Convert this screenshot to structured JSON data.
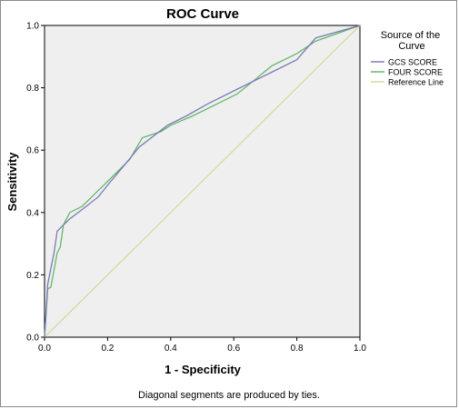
{
  "chart_data": {
    "type": "line",
    "title": "ROC Curve",
    "xlabel": "1 - Specificity",
    "ylabel": "Sensitivity",
    "xlim": [
      0,
      1
    ],
    "ylim": [
      0,
      1
    ],
    "xticks": [
      "0.0",
      "0.2",
      "0.4",
      "0.6",
      "0.8",
      "1.0"
    ],
    "yticks": [
      "0.0",
      "0.2",
      "0.4",
      "0.6",
      "0.8",
      "1.0"
    ],
    "grid": false,
    "legend": {
      "title": "Source of the Curve",
      "title_lines": [
        "Source of the",
        "Curve"
      ],
      "placement": "right"
    },
    "footnote": "Diagonal segments are produced by ties.",
    "series": [
      {
        "name": "GCS SCORE",
        "color": "#7b7bb8",
        "x": [
          0,
          0.01,
          0.03,
          0.04,
          0.06,
          0.08,
          0.12,
          0.17,
          0.21,
          0.26,
          0.3,
          0.39,
          0.45,
          0.52,
          0.6,
          0.68,
          0.74,
          0.8,
          0.86,
          0.93,
          1.0
        ],
        "y": [
          0,
          0.17,
          0.27,
          0.34,
          0.36,
          0.38,
          0.41,
          0.45,
          0.5,
          0.56,
          0.61,
          0.68,
          0.71,
          0.75,
          0.79,
          0.83,
          0.86,
          0.89,
          0.96,
          0.98,
          1.0
        ]
      },
      {
        "name": "FOUR SCORE",
        "color": "#62b86a",
        "x": [
          0,
          0.01,
          0.02,
          0.04,
          0.05,
          0.06,
          0.08,
          0.12,
          0.16,
          0.21,
          0.27,
          0.31,
          0.37,
          0.4,
          0.47,
          0.55,
          0.61,
          0.66,
          0.72,
          0.8,
          0.86,
          0.93,
          1.0
        ],
        "y": [
          0,
          0.155,
          0.16,
          0.27,
          0.29,
          0.36,
          0.4,
          0.42,
          0.46,
          0.51,
          0.57,
          0.64,
          0.66,
          0.68,
          0.71,
          0.75,
          0.78,
          0.82,
          0.87,
          0.91,
          0.95,
          0.975,
          1.0
        ]
      },
      {
        "name": "Reference Line",
        "color": "#d8d8a0",
        "x": [
          0,
          1
        ],
        "y": [
          0,
          1
        ]
      }
    ]
  }
}
